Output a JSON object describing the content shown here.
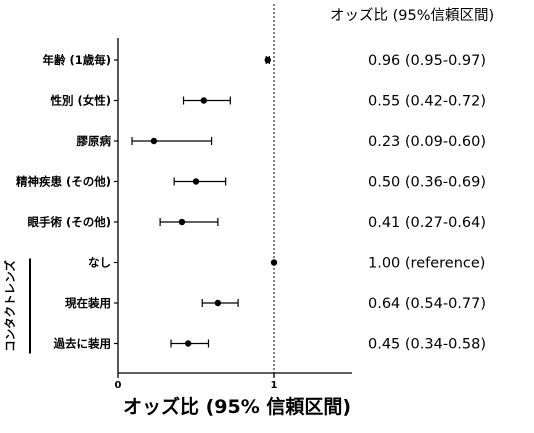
{
  "chart_data": {
    "type": "forest",
    "column_header": "オッズ比 (95%信頼区間)",
    "xlabel": "オッズ比 (95% 信頼区間)",
    "xlim": [
      0,
      1.5
    ],
    "xticks": [
      0,
      1
    ],
    "reference_line": 1,
    "group_label": "コンタクトレンズ",
    "rows": [
      {
        "label": "年齢 (1歳毎)",
        "or": 0.96,
        "lo": 0.95,
        "hi": 0.97,
        "text": "0.96 (0.95-0.97)"
      },
      {
        "label": "性別 (女性)",
        "or": 0.55,
        "lo": 0.42,
        "hi": 0.72,
        "text": "0.55 (0.42-0.72)"
      },
      {
        "label": "膠原病",
        "or": 0.23,
        "lo": 0.09,
        "hi": 0.6,
        "text": "0.23 (0.09-0.60)"
      },
      {
        "label": "精神疾患 (その他)",
        "or": 0.5,
        "lo": 0.36,
        "hi": 0.69,
        "text": "0.50 (0.36-0.69)"
      },
      {
        "label": "眼手術 (その他)",
        "or": 0.41,
        "lo": 0.27,
        "hi": 0.64,
        "text": "0.41 (0.27-0.64)"
      },
      {
        "label": "なし",
        "or": 1.0,
        "lo": 1.0,
        "hi": 1.0,
        "text": "1.00 (reference)"
      },
      {
        "label": "現在装用",
        "or": 0.64,
        "lo": 0.54,
        "hi": 0.77,
        "text": "0.64 (0.54-0.77)"
      },
      {
        "label": "過去に装用",
        "or": 0.45,
        "lo": 0.34,
        "hi": 0.58,
        "text": "0.45 (0.34-0.58)"
      }
    ],
    "group_rows": [
      5,
      7
    ]
  }
}
